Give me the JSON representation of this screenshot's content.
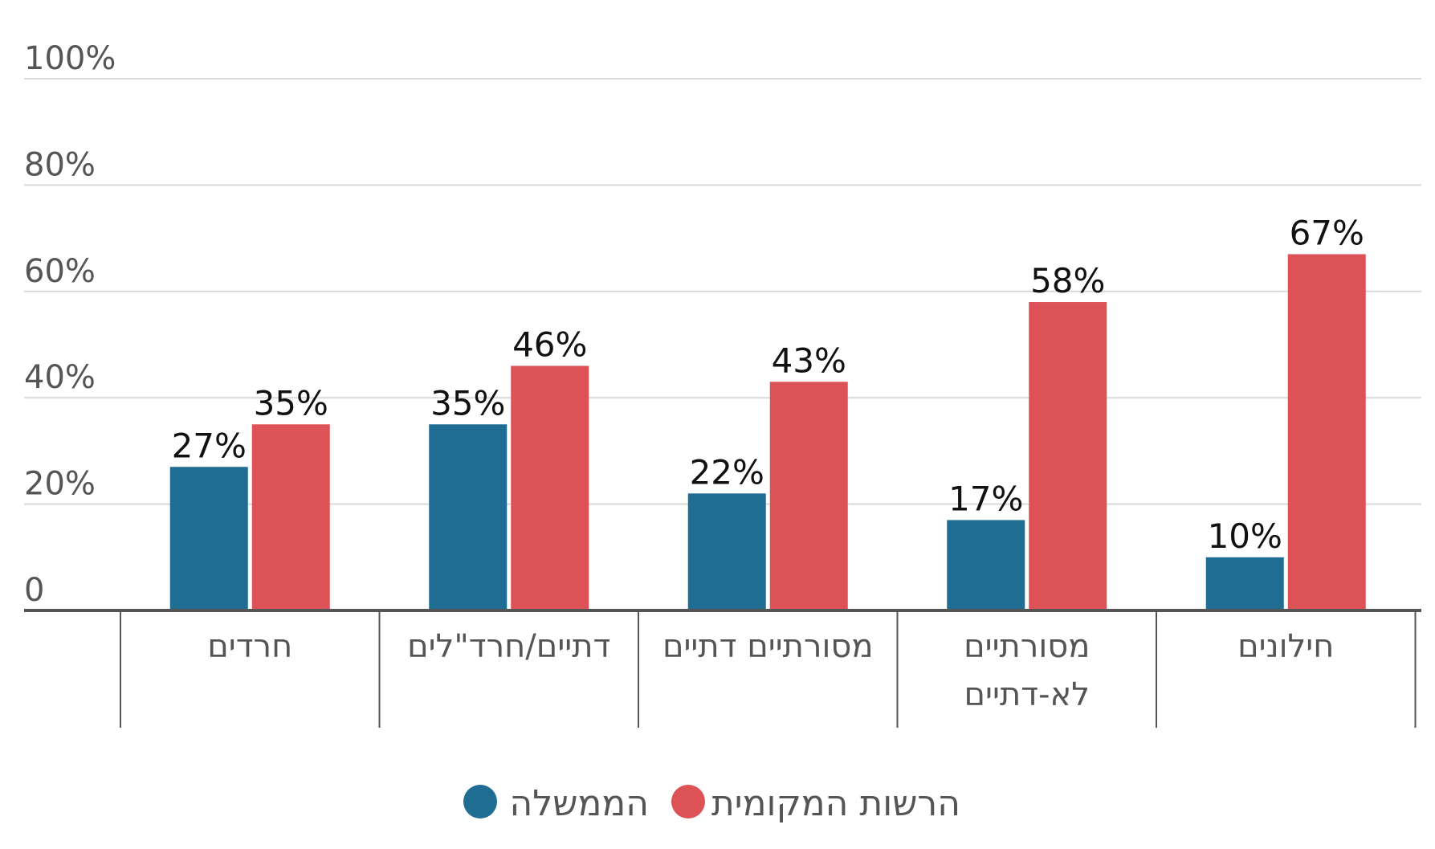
{
  "chart_data": {
    "type": "bar",
    "categories": [
      "חרדים",
      "דתיים/חרד\"לים",
      "מסורתיים דתיים",
      "מסורתיים לא-דתיים",
      "חילונים"
    ],
    "category_lines": [
      [
        "חרדים"
      ],
      [
        "דתיים/חרד\"לים"
      ],
      [
        "מסורתיים דתיים"
      ],
      [
        "מסורתיים",
        "לא-דתיים"
      ],
      [
        "חילונים"
      ]
    ],
    "series": [
      {
        "name": "הממשלה",
        "values": [
          27,
          35,
          22,
          17,
          10
        ],
        "labels": [
          "27%",
          "35%",
          "22%",
          "17%",
          "10%"
        ],
        "color": "#206d94"
      },
      {
        "name": "הרשות המקומית",
        "values": [
          35,
          46,
          43,
          58,
          67
        ],
        "labels": [
          "35%",
          "46%",
          "43%",
          "58%",
          "67%"
        ],
        "color": "#dc5256"
      }
    ],
    "ylim": [
      0,
      100
    ],
    "yticks": [
      0,
      20,
      40,
      60,
      80,
      100
    ],
    "ytick_labels": [
      "0",
      "20%",
      "40%",
      "60%",
      "80%",
      "100%"
    ],
    "grid": true,
    "legend_placement": "bottom-center",
    "colors": {
      "grid": "#d9d9d9",
      "axis": "#555555",
      "text": "#555555",
      "value_text": "#111111"
    }
  }
}
